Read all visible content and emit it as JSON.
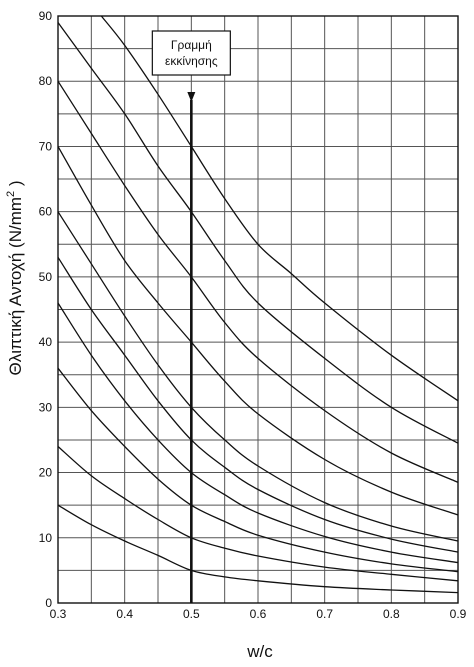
{
  "chart_data": {
    "type": "line",
    "xlabel": "w/c",
    "ylabel": "Θλιπτική Αντοχή  (N/mm",
    "ylabel_sup": "2",
    "ylabel_close": " )",
    "xlim": [
      0.3,
      0.9
    ],
    "ylim": [
      0,
      90
    ],
    "x_ticks": [
      0.3,
      0.4,
      0.5,
      0.6,
      0.7,
      0.8,
      0.9
    ],
    "y_ticks": [
      0,
      10,
      20,
      30,
      40,
      50,
      60,
      70,
      80,
      90
    ],
    "grid": true,
    "annotation": {
      "lines": [
        "Γραμμή",
        "εκκίνησης"
      ],
      "x": 0.5
    },
    "series": [
      {
        "values": [
          [
            0.3,
            15
          ],
          [
            0.35,
            12
          ],
          [
            0.4,
            9.5
          ],
          [
            0.45,
            7.3
          ],
          [
            0.5,
            5
          ],
          [
            0.55,
            4
          ],
          [
            0.6,
            3.4
          ],
          [
            0.7,
            2.5
          ],
          [
            0.8,
            2
          ],
          [
            0.9,
            1.6
          ]
        ]
      },
      {
        "values": [
          [
            0.3,
            24
          ],
          [
            0.35,
            19.5
          ],
          [
            0.4,
            16
          ],
          [
            0.45,
            12.8
          ],
          [
            0.5,
            10
          ],
          [
            0.55,
            8.4
          ],
          [
            0.6,
            7.2
          ],
          [
            0.7,
            5.5
          ],
          [
            0.8,
            4.4
          ],
          [
            0.9,
            3.4
          ]
        ]
      },
      {
        "values": [
          [
            0.3,
            36
          ],
          [
            0.35,
            29.5
          ],
          [
            0.4,
            24
          ],
          [
            0.45,
            19
          ],
          [
            0.5,
            15
          ],
          [
            0.55,
            12.5
          ],
          [
            0.6,
            10.4
          ],
          [
            0.7,
            7.8
          ],
          [
            0.8,
            6
          ],
          [
            0.9,
            4.8
          ]
        ]
      },
      {
        "values": [
          [
            0.3,
            46
          ],
          [
            0.35,
            38
          ],
          [
            0.4,
            31
          ],
          [
            0.45,
            25
          ],
          [
            0.5,
            20
          ],
          [
            0.55,
            16.6
          ],
          [
            0.6,
            13.8
          ],
          [
            0.7,
            10.2
          ],
          [
            0.8,
            7.8
          ],
          [
            0.9,
            6.2
          ]
        ]
      },
      {
        "values": [
          [
            0.3,
            53
          ],
          [
            0.35,
            45
          ],
          [
            0.4,
            38
          ],
          [
            0.45,
            31
          ],
          [
            0.5,
            25
          ],
          [
            0.55,
            20.8
          ],
          [
            0.6,
            17.4
          ],
          [
            0.7,
            12.8
          ],
          [
            0.8,
            9.8
          ],
          [
            0.9,
            7.8
          ]
        ]
      },
      {
        "values": [
          [
            0.3,
            60
          ],
          [
            0.35,
            52
          ],
          [
            0.4,
            44
          ],
          [
            0.45,
            36.5
          ],
          [
            0.5,
            30
          ],
          [
            0.55,
            25
          ],
          [
            0.6,
            21
          ],
          [
            0.7,
            15.4
          ],
          [
            0.8,
            11.8
          ],
          [
            0.9,
            9.5
          ]
        ]
      },
      {
        "values": [
          [
            0.3,
            70
          ],
          [
            0.35,
            61
          ],
          [
            0.4,
            52.5
          ],
          [
            0.45,
            46
          ],
          [
            0.5,
            40
          ],
          [
            0.55,
            34
          ],
          [
            0.6,
            29
          ],
          [
            0.7,
            22
          ],
          [
            0.8,
            17
          ],
          [
            0.9,
            13.5
          ]
        ]
      },
      {
        "values": [
          [
            0.3,
            80
          ],
          [
            0.35,
            72
          ],
          [
            0.4,
            64
          ],
          [
            0.45,
            56.5
          ],
          [
            0.5,
            50
          ],
          [
            0.55,
            43
          ],
          [
            0.6,
            37.5
          ],
          [
            0.7,
            29.5
          ],
          [
            0.8,
            23
          ],
          [
            0.9,
            18.5
          ]
        ]
      },
      {
        "values": [
          [
            0.3,
            89
          ],
          [
            0.35,
            82
          ],
          [
            0.4,
            75
          ],
          [
            0.45,
            67
          ],
          [
            0.5,
            60
          ],
          [
            0.55,
            52.5
          ],
          [
            0.6,
            46
          ],
          [
            0.7,
            37.5
          ],
          [
            0.8,
            30
          ],
          [
            0.9,
            24.5
          ]
        ]
      },
      {
        "values": [
          [
            0.365,
            90
          ],
          [
            0.4,
            85.5
          ],
          [
            0.45,
            78
          ],
          [
            0.5,
            70
          ],
          [
            0.55,
            62
          ],
          [
            0.6,
            55
          ],
          [
            0.65,
            50.5
          ],
          [
            0.7,
            46
          ],
          [
            0.8,
            38
          ],
          [
            0.9,
            31
          ]
        ]
      }
    ]
  }
}
